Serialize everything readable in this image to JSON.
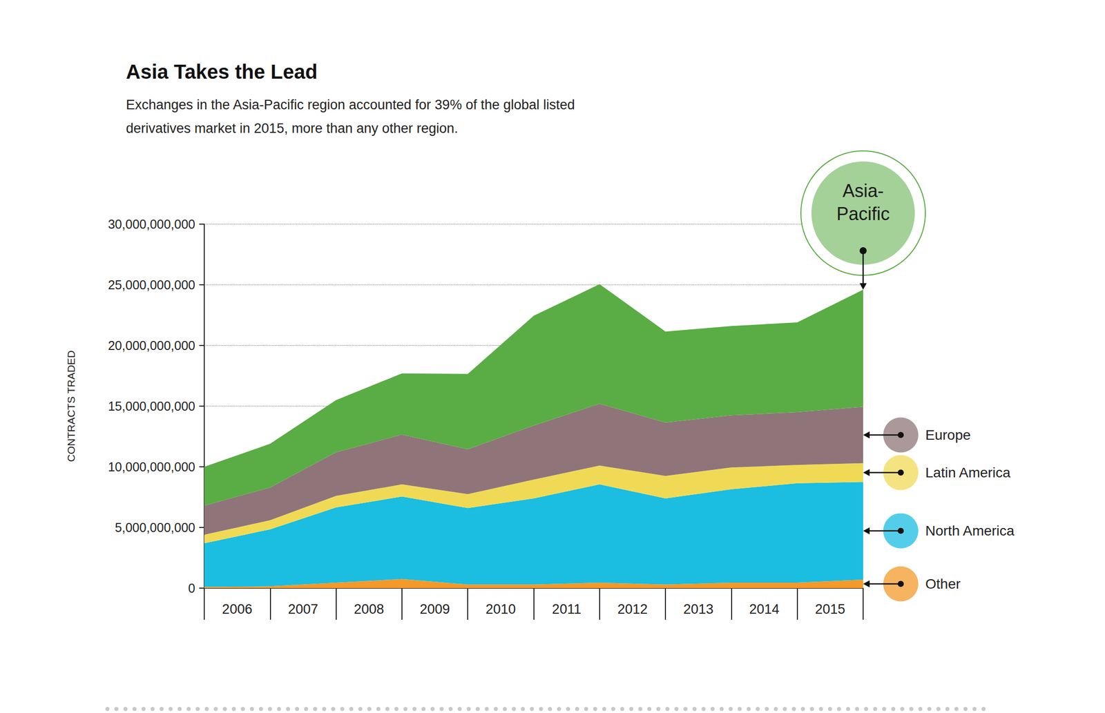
{
  "chart_data": {
    "type": "area",
    "title": "Asia Takes the Lead",
    "subtitle": "Exchanges in the Asia-Pacific region accounted for 39% of the global listed derivatives market in 2015, more than any other region.",
    "y_label": "CONTRACTS TRADED",
    "categories": [
      null,
      "2006",
      "2007",
      "2008",
      "2009",
      "2010",
      "2011",
      "2012",
      "2013",
      "2014",
      "2015"
    ],
    "series": [
      {
        "name": "Other",
        "color": "#f39a2b",
        "values": [
          100000000,
          150000000,
          450000000,
          750000000,
          300000000,
          300000000,
          450000000,
          300000000,
          450000000,
          450000000,
          700000000
        ]
      },
      {
        "name": "North America",
        "color": "#1bbde0",
        "values": [
          3600000000,
          4700000000,
          6200000000,
          6800000000,
          6300000000,
          7100000000,
          8100000000,
          7100000000,
          7700000000,
          8200000000,
          8050000000
        ]
      },
      {
        "name": "Latin America",
        "color": "#f0da55",
        "values": [
          700000000,
          750000000,
          950000000,
          1000000000,
          1150000000,
          1550000000,
          1550000000,
          1850000000,
          1800000000,
          1500000000,
          1550000000
        ]
      },
      {
        "name": "Europe",
        "color": "#8f7579",
        "values": [
          2400000000,
          2700000000,
          3600000000,
          4100000000,
          3700000000,
          4450000000,
          5100000000,
          4400000000,
          4300000000,
          4350000000,
          4650000000
        ]
      },
      {
        "name": "Asia-Pacific",
        "color": "#5aac44",
        "values": [
          3200000000,
          3600000000,
          4300000000,
          5050000000,
          6200000000,
          9050000000,
          9850000000,
          7500000000,
          7350000000,
          7400000000,
          9650000000
        ]
      }
    ],
    "ylim": [
      0,
      30000000000
    ],
    "yticks": [
      0,
      {
        "value": 5000000000,
        "label": "5,000,000,000"
      },
      {
        "value": 10000000000,
        "label": "10,000,000,000"
      },
      {
        "value": 15000000000,
        "label": "15,000,000,000"
      },
      {
        "value": 20000000000,
        "label": "20,000,000,000"
      },
      {
        "value": 25000000000,
        "label": "25,000,000,000"
      },
      {
        "value": 30000000000,
        "label": "30,000,000,000"
      }
    ],
    "grid": true,
    "stacked": true,
    "legend": "right"
  }
}
